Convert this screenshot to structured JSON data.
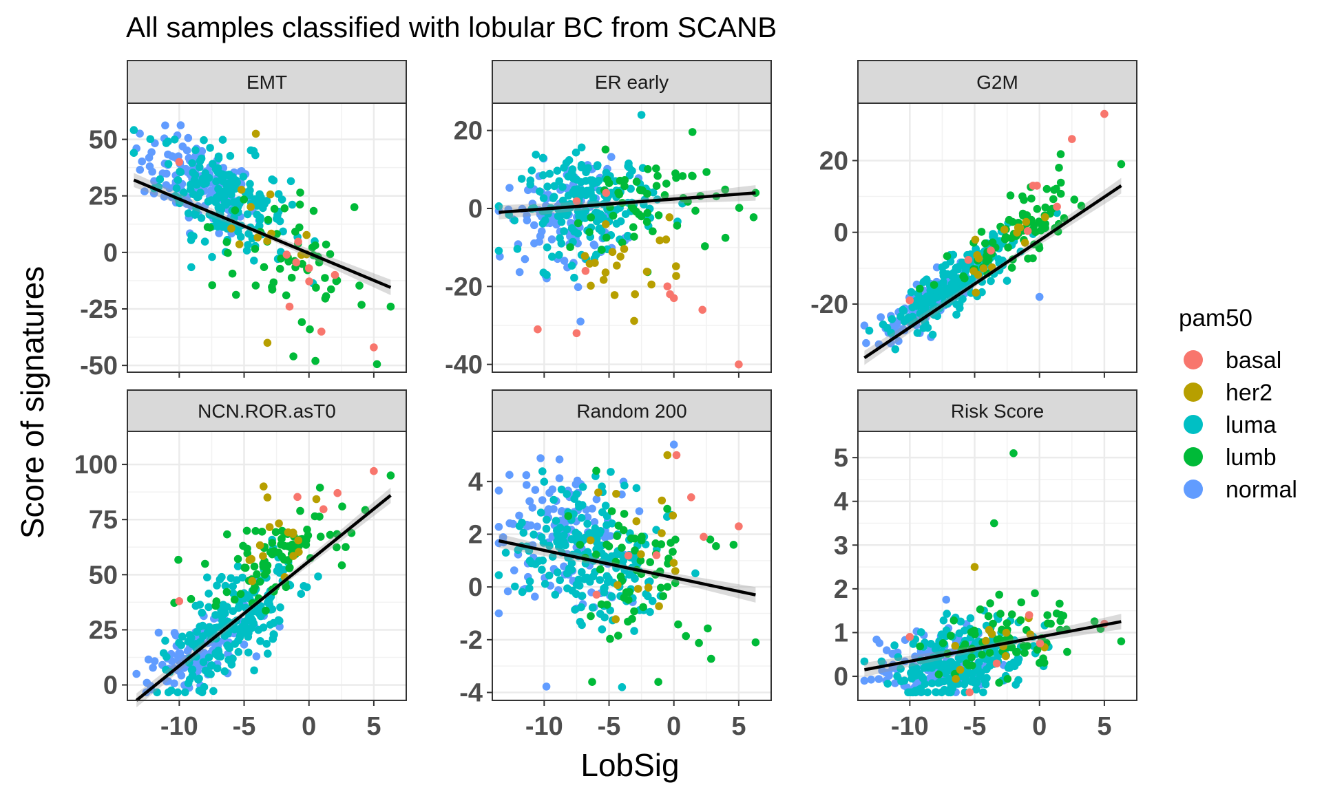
{
  "chart_data": {
    "type": "scatter",
    "title": "All samples classified with lobular BC from SCANB",
    "xlabel": "LobSig",
    "ylabel": "Score of signatures",
    "grid": true,
    "trend_line": "linear fit with confidence band",
    "legend": {
      "title": "pam50",
      "placement": "right",
      "entries": [
        {
          "name": "basal",
          "color": "#F8766D"
        },
        {
          "name": "her2",
          "color": "#B79F00"
        },
        {
          "name": "luma",
          "color": "#00BFC4"
        },
        {
          "name": "lumb",
          "color": "#00BA38"
        },
        {
          "name": "normal",
          "color": "#619CFF"
        }
      ]
    },
    "x_ticks": [
      -10,
      -5,
      0,
      5
    ],
    "xlim": [
      -14,
      7.5
    ],
    "panels": [
      {
        "name": "EMT",
        "ylim": [
          -53,
          66
        ],
        "y_ticks": [
          50,
          25,
          0,
          -25,
          -50
        ],
        "fit": {
          "x0": -13.5,
          "y0": 32,
          "x1": 6.3,
          "y1": -15.5
        },
        "cloud": [
          {
            "class": "normal",
            "n": 120,
            "cx": -8.5,
            "sx": 2.2,
            "slope": -2.4,
            "intercept": 10,
            "sy": 9
          },
          {
            "class": "luma",
            "n": 180,
            "cx": -6.5,
            "sx": 2.5,
            "slope": -2.4,
            "intercept": 9,
            "sy": 11
          },
          {
            "class": "lumb",
            "n": 60,
            "cx": -1.5,
            "sx": 3.0,
            "slope": -2.6,
            "intercept": -8,
            "sy": 14
          },
          {
            "class": "her2",
            "n": 12,
            "cx": -3.0,
            "sx": 2.5,
            "slope": -2.0,
            "intercept": 5,
            "sy": 12
          },
          {
            "class": "basal",
            "n": 5,
            "cx": 0.5,
            "sx": 3.0,
            "slope": -3.0,
            "intercept": -10,
            "sy": 15
          }
        ],
        "points": [
          {
            "x": -13.3,
            "y": 46,
            "class": "normal"
          },
          {
            "x": -10,
            "y": 40,
            "class": "basal"
          },
          {
            "x": 0,
            "y": -7,
            "class": "basal"
          },
          {
            "x": 2,
            "y": -10,
            "class": "basal"
          },
          {
            "x": 5,
            "y": -42,
            "class": "basal"
          },
          {
            "x": -1.5,
            "y": -24,
            "class": "basal"
          },
          {
            "x": 0.5,
            "y": -48,
            "class": "lumb"
          },
          {
            "x": -1.2,
            "y": -46,
            "class": "lumb"
          },
          {
            "x": 6.3,
            "y": -24,
            "class": "lumb"
          },
          {
            "x": 3.5,
            "y": 20,
            "class": "lumb"
          },
          {
            "x": -3.2,
            "y": -40,
            "class": "her2"
          }
        ]
      },
      {
        "name": "ER early",
        "ylim": [
          -42,
          27
        ],
        "y_ticks": [
          20,
          0,
          -20,
          -40
        ],
        "fit": {
          "x0": -13.5,
          "y0": -1,
          "x1": 6.3,
          "y1": 4
        },
        "cloud": [
          {
            "class": "normal",
            "n": 110,
            "cx": -8.5,
            "sx": 2.2,
            "slope": 0.25,
            "intercept": 0,
            "sy": 7
          },
          {
            "class": "luma",
            "n": 190,
            "cx": -6.5,
            "sx": 2.6,
            "slope": 0.25,
            "intercept": 3,
            "sy": 6
          },
          {
            "class": "lumb",
            "n": 60,
            "cx": -2.0,
            "sx": 3.0,
            "slope": 0.3,
            "intercept": 1,
            "sy": 7
          },
          {
            "class": "her2",
            "n": 20,
            "cx": -4.0,
            "sx": 2.5,
            "slope": 0.5,
            "intercept": -10,
            "sy": 7
          },
          {
            "class": "basal",
            "n": 3,
            "cx": -4.0,
            "sx": 3.0,
            "slope": 0.0,
            "intercept": -15,
            "sy": 7
          }
        ],
        "points": [
          {
            "x": -2.5,
            "y": 24,
            "class": "luma"
          },
          {
            "x": -10.5,
            "y": -31,
            "class": "basal"
          },
          {
            "x": -7.5,
            "y": -32,
            "class": "basal"
          },
          {
            "x": -0.5,
            "y": -20,
            "class": "basal"
          },
          {
            "x": 0,
            "y": -23,
            "class": "basal"
          },
          {
            "x": -0.3,
            "y": -22,
            "class": "basal"
          },
          {
            "x": 2.2,
            "y": -26,
            "class": "basal"
          },
          {
            "x": 5,
            "y": -40,
            "class": "basal"
          },
          {
            "x": -7.2,
            "y": -29,
            "class": "normal"
          },
          {
            "x": -3,
            "y": -22,
            "class": "her2"
          },
          {
            "x": 6.3,
            "y": 4,
            "class": "lumb"
          }
        ]
      },
      {
        "name": "G2M",
        "ylim": [
          -39,
          36
        ],
        "y_ticks": [
          20,
          0,
          -20
        ],
        "fit": {
          "x0": -13.5,
          "y0": -35,
          "x1": 6.3,
          "y1": 13
        },
        "cloud": [
          {
            "class": "normal",
            "n": 130,
            "cx": -8.5,
            "sx": 1.8,
            "slope": 2.4,
            "intercept": 1,
            "sy": 3
          },
          {
            "class": "luma",
            "n": 200,
            "cx": -6.5,
            "sx": 2.2,
            "slope": 2.4,
            "intercept": 1,
            "sy": 3.5
          },
          {
            "class": "lumb",
            "n": 80,
            "cx": -1.5,
            "sx": 2.6,
            "slope": 2.4,
            "intercept": 3,
            "sy": 4.5
          },
          {
            "class": "her2",
            "n": 15,
            "cx": -3.0,
            "sx": 2.2,
            "slope": 2.4,
            "intercept": 3,
            "sy": 4
          },
          {
            "class": "basal",
            "n": 4,
            "cx": -2.0,
            "sx": 3.0,
            "slope": 2.4,
            "intercept": 4,
            "sy": 4
          }
        ],
        "points": [
          {
            "x": 5,
            "y": 33,
            "class": "basal"
          },
          {
            "x": 2.5,
            "y": 26,
            "class": "basal"
          },
          {
            "x": -10.0,
            "y": -19,
            "class": "basal"
          },
          {
            "x": -0.5,
            "y": 13,
            "class": "basal"
          },
          {
            "x": -0.2,
            "y": 13,
            "class": "basal"
          },
          {
            "x": -13.5,
            "y": -26,
            "class": "normal"
          },
          {
            "x": 0,
            "y": -18,
            "class": "normal"
          },
          {
            "x": 6.3,
            "y": 19,
            "class": "lumb"
          },
          {
            "x": 1.5,
            "y": 18,
            "class": "lumb"
          }
        ]
      },
      {
        "name": "NCN.ROR.asT0",
        "ylim": [
          -7,
          115
        ],
        "y_ticks": [
          100,
          75,
          50,
          25,
          0
        ],
        "fit": {
          "x0": -13.3,
          "y0": -7,
          "x1": 6.3,
          "y1": 86
        },
        "cloud": [
          {
            "class": "normal",
            "n": 120,
            "cx": -8.0,
            "sx": 2.0,
            "slope": 3.4,
            "intercept": 45,
            "sy": 8
          },
          {
            "class": "luma",
            "n": 210,
            "cx": -6.0,
            "sx": 2.4,
            "slope": 4.0,
            "intercept": 50,
            "sy": 10
          },
          {
            "class": "lumb",
            "n": 90,
            "cx": -3.0,
            "sx": 2.6,
            "slope": 3.0,
            "intercept": 67,
            "sy": 8
          },
          {
            "class": "her2",
            "n": 15,
            "cx": -3.0,
            "sx": 1.8,
            "slope": 3.0,
            "intercept": 67,
            "sy": 10
          },
          {
            "class": "basal",
            "n": 2,
            "cx": 1.0,
            "sx": 1.5,
            "slope": 3.0,
            "intercept": 80,
            "sy": 4
          }
        ],
        "points": [
          {
            "x": 5,
            "y": 97,
            "class": "basal"
          },
          {
            "x": 2.2,
            "y": 87,
            "class": "basal"
          },
          {
            "x": -10,
            "y": 38,
            "class": "basal"
          },
          {
            "x": 6.3,
            "y": 95,
            "class": "lumb"
          },
          {
            "x": -13.3,
            "y": 5,
            "class": "normal"
          },
          {
            "x": -12.5,
            "y": 1,
            "class": "normal"
          },
          {
            "x": -3.5,
            "y": 90,
            "class": "her2"
          },
          {
            "x": -3.2,
            "y": 85,
            "class": "her2"
          }
        ]
      },
      {
        "name": "Random 200",
        "ylim": [
          -4.3,
          5.9
        ],
        "y_ticks": [
          4,
          2,
          0,
          -2,
          -4
        ],
        "fit": {
          "x0": -13.5,
          "y0": 1.75,
          "x1": 6.3,
          "y1": -0.3
        },
        "cloud": [
          {
            "class": "normal",
            "n": 120,
            "cx": -8.5,
            "sx": 2.3,
            "slope": -0.1,
            "intercept": 1.0,
            "sy": 1.2
          },
          {
            "class": "luma",
            "n": 200,
            "cx": -6.5,
            "sx": 2.6,
            "slope": -0.1,
            "intercept": 0.6,
            "sy": 1.3
          },
          {
            "class": "lumb",
            "n": 60,
            "cx": -2.5,
            "sx": 2.8,
            "slope": -0.1,
            "intercept": 0.3,
            "sy": 1.4
          },
          {
            "class": "her2",
            "n": 15,
            "cx": -3.5,
            "sx": 2.5,
            "slope": -0.1,
            "intercept": 0.8,
            "sy": 1.3
          },
          {
            "class": "basal",
            "n": 4,
            "cx": -2.0,
            "sx": 3.0,
            "slope": 0.0,
            "intercept": 1.0,
            "sy": 1.0
          }
        ],
        "points": [
          {
            "x": 0,
            "y": 5.4,
            "class": "normal"
          },
          {
            "x": -0.5,
            "y": 5.0,
            "class": "her2"
          },
          {
            "x": 0.2,
            "y": 5.0,
            "class": "basal"
          },
          {
            "x": 2.3,
            "y": 1.9,
            "class": "basal"
          },
          {
            "x": 5,
            "y": 2.3,
            "class": "basal"
          },
          {
            "x": -13.5,
            "y": -1.0,
            "class": "normal"
          },
          {
            "x": -6.3,
            "y": -3.6,
            "class": "lumb"
          },
          {
            "x": -4,
            "y": -3.8,
            "class": "luma"
          },
          {
            "x": -1.2,
            "y": -3.6,
            "class": "lumb"
          },
          {
            "x": 6.3,
            "y": -2.1,
            "class": "lumb"
          },
          {
            "x": 4.6,
            "y": 1.6,
            "class": "lumb"
          },
          {
            "x": 2.8,
            "y": 1.8,
            "class": "lumb"
          }
        ]
      },
      {
        "name": "Risk Score",
        "ylim": [
          -0.55,
          5.6
        ],
        "y_ticks": [
          5,
          4,
          3,
          2,
          1,
          0
        ],
        "fit": {
          "x0": -13.5,
          "y0": 0.15,
          "x1": 6.3,
          "y1": 1.25
        },
        "cloud": [
          {
            "class": "normal",
            "n": 130,
            "cx": -8.0,
            "sx": 2.2,
            "slope": 0.06,
            "intercept": 0.75,
            "sy": 0.4
          },
          {
            "class": "luma",
            "n": 220,
            "cx": -6.0,
            "sx": 2.6,
            "slope": 0.06,
            "intercept": 0.75,
            "sy": 0.45
          },
          {
            "class": "lumb",
            "n": 70,
            "cx": -2.5,
            "sx": 2.8,
            "slope": 0.07,
            "intercept": 1.05,
            "sy": 0.5
          },
          {
            "class": "her2",
            "n": 12,
            "cx": -3.0,
            "sx": 2.5,
            "slope": 0.06,
            "intercept": 0.9,
            "sy": 0.45
          },
          {
            "class": "basal",
            "n": 3,
            "cx": -2.0,
            "sx": 3.0,
            "slope": 0.06,
            "intercept": 0.9,
            "sy": 0.4
          }
        ],
        "points": [
          {
            "x": -2,
            "y": 5.1,
            "class": "lumb"
          },
          {
            "x": -3.5,
            "y": 3.5,
            "class": "lumb"
          },
          {
            "x": -13.5,
            "y": -0.1,
            "class": "normal"
          },
          {
            "x": -10,
            "y": 0.9,
            "class": "basal"
          },
          {
            "x": -0.8,
            "y": 1.4,
            "class": "basal"
          },
          {
            "x": 5,
            "y": 1.2,
            "class": "basal"
          },
          {
            "x": 6.3,
            "y": 0.8,
            "class": "lumb"
          },
          {
            "x": -5,
            "y": 2.5,
            "class": "her2"
          }
        ]
      }
    ]
  }
}
